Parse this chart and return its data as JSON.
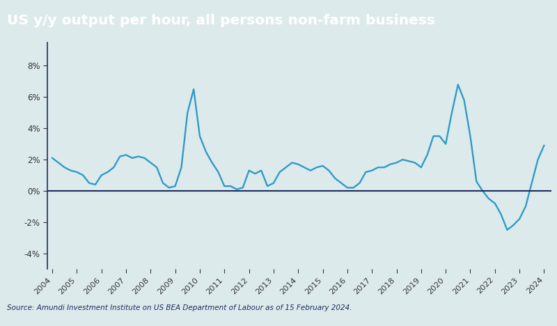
{
  "title": "US y/y output per hour, all persons non-farm business",
  "title_bg_color": "#4aadad",
  "title_text_color": "#ffffff",
  "plot_bg_color": "#ddeaec",
  "line_color": "#2e9bc5",
  "source_text": "Source: Amundi Investment Institute on US BEA Department of Labour as of 15 February 2024.",
  "zero_line_color": "#1c2b5e",
  "spine_color": "#1c2b5e",
  "yticks": [
    -4,
    -2,
    0,
    2,
    4,
    6,
    8
  ],
  "ylim": [
    -5.0,
    9.5
  ],
  "x_data": [
    2004.0,
    2004.25,
    2004.5,
    2004.75,
    2005.0,
    2005.25,
    2005.5,
    2005.75,
    2006.0,
    2006.25,
    2006.5,
    2006.75,
    2007.0,
    2007.25,
    2007.5,
    2007.75,
    2008.0,
    2008.25,
    2008.5,
    2008.75,
    2009.0,
    2009.25,
    2009.5,
    2009.75,
    2010.0,
    2010.25,
    2010.5,
    2010.75,
    2011.0,
    2011.25,
    2011.5,
    2011.75,
    2012.0,
    2012.25,
    2012.5,
    2012.75,
    2013.0,
    2013.25,
    2013.5,
    2013.75,
    2014.0,
    2014.25,
    2014.5,
    2014.75,
    2015.0,
    2015.25,
    2015.5,
    2015.75,
    2016.0,
    2016.25,
    2016.5,
    2016.75,
    2017.0,
    2017.25,
    2017.5,
    2017.75,
    2018.0,
    2018.25,
    2018.5,
    2018.75,
    2019.0,
    2019.25,
    2019.5,
    2019.75,
    2020.0,
    2020.25,
    2020.5,
    2020.75,
    2021.0,
    2021.25,
    2021.5,
    2021.75,
    2022.0,
    2022.25,
    2022.5,
    2022.75,
    2023.0,
    2023.25,
    2023.5,
    2023.75,
    2024.0
  ],
  "y_data": [
    2.1,
    1.8,
    1.5,
    1.3,
    1.2,
    1.0,
    0.5,
    0.4,
    1.0,
    1.2,
    1.5,
    2.2,
    2.3,
    2.1,
    2.2,
    2.1,
    1.8,
    1.5,
    0.5,
    0.2,
    0.3,
    1.5,
    5.0,
    6.5,
    3.5,
    2.5,
    1.8,
    1.2,
    0.3,
    0.3,
    0.1,
    0.2,
    1.3,
    1.1,
    1.3,
    0.3,
    0.5,
    1.2,
    1.5,
    1.8,
    1.7,
    1.5,
    1.3,
    1.5,
    1.6,
    1.3,
    0.8,
    0.5,
    0.2,
    0.2,
    0.5,
    1.2,
    1.3,
    1.5,
    1.5,
    1.7,
    1.8,
    2.0,
    1.9,
    1.8,
    1.5,
    2.3,
    3.5,
    3.5,
    3.0,
    5.0,
    6.8,
    5.8,
    3.5,
    0.6,
    0.0,
    -0.5,
    -0.8,
    -1.5,
    -2.5,
    -2.2,
    -1.8,
    -1.0,
    0.5,
    2.0,
    2.9
  ],
  "xtick_labels": [
    "2004",
    "2005",
    "2006",
    "2007",
    "2008",
    "2009",
    "2010",
    "2011",
    "2012",
    "2013",
    "2014",
    "2015",
    "2016",
    "2017",
    "2018",
    "2019",
    "2020",
    "2021",
    "2022",
    "2023",
    "2024"
  ],
  "xtick_positions": [
    2004,
    2005,
    2006,
    2007,
    2008,
    2009,
    2010,
    2011,
    2012,
    2013,
    2014,
    2015,
    2016,
    2017,
    2018,
    2019,
    2020,
    2021,
    2022,
    2023,
    2024
  ],
  "xlim": [
    2003.8,
    2024.3
  ]
}
